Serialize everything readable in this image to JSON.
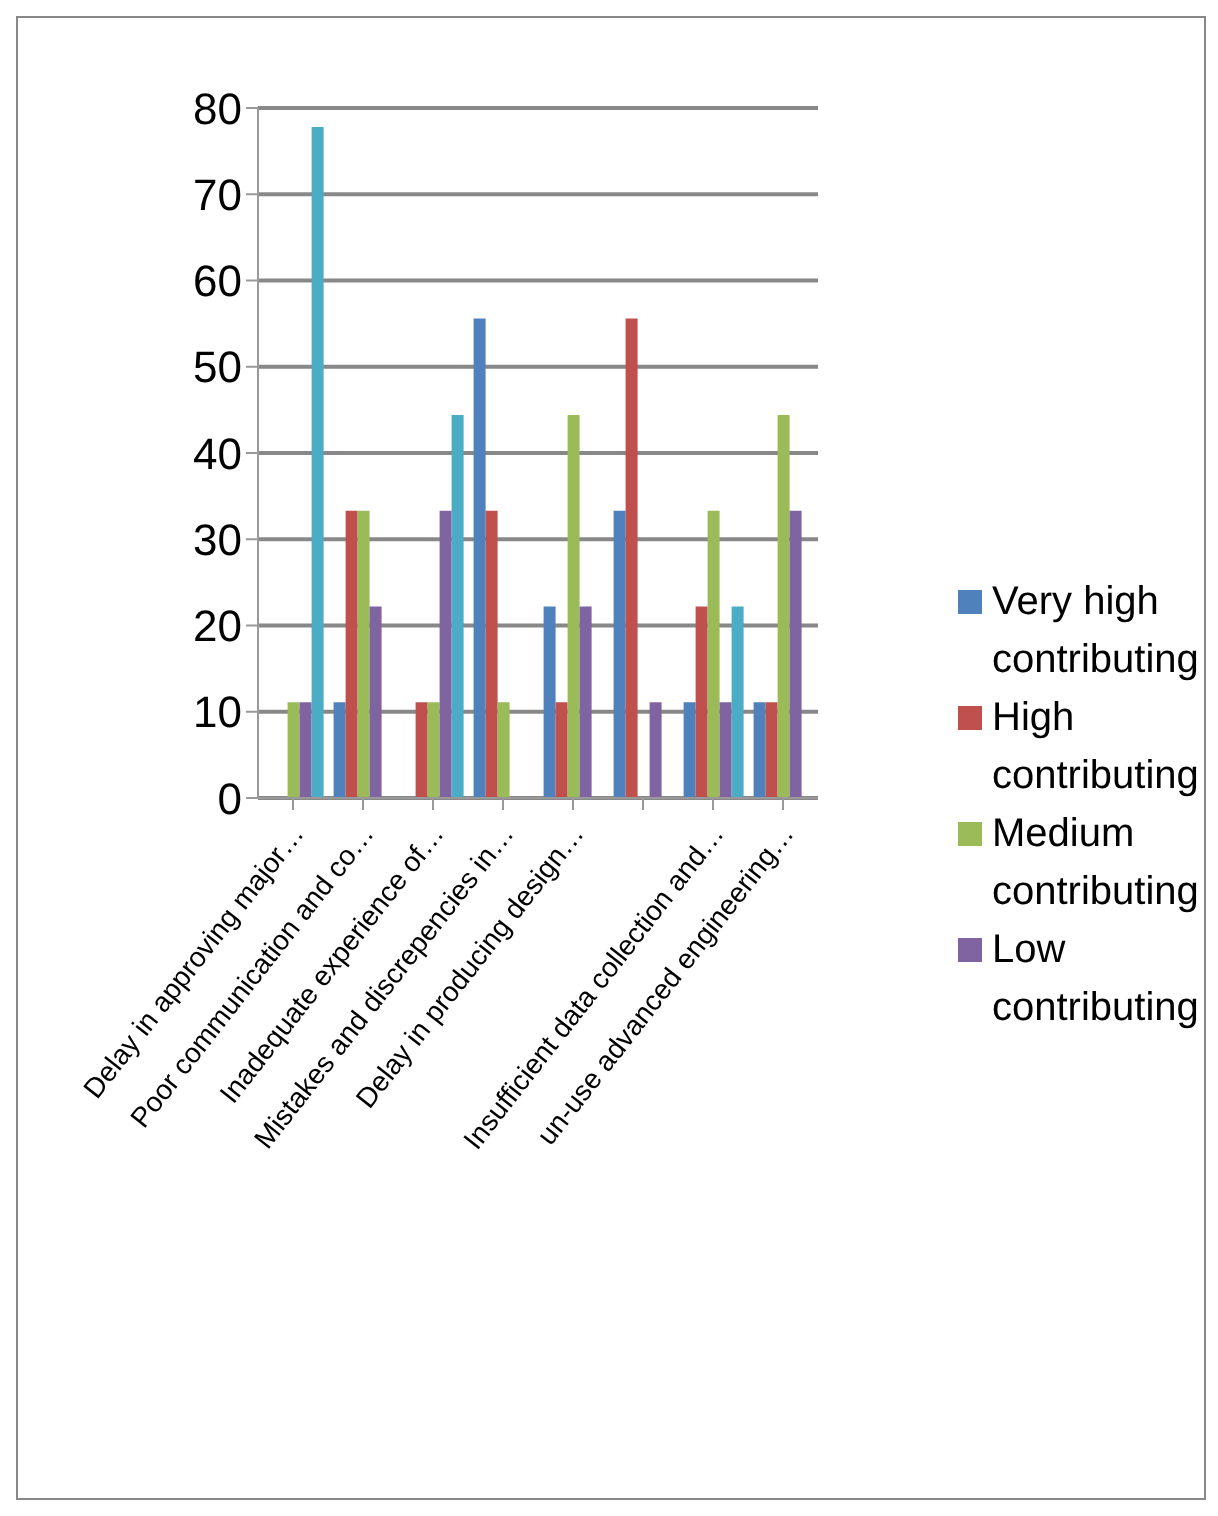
{
  "chart_data": {
    "type": "bar",
    "categories": [
      "Delay in approving major…",
      "Poor communication and co…",
      "Inadequate experience of…",
      "Mistakes and discrepencies in…",
      "Delay in producing design…",
      null,
      "Insufficient data collection and…",
      "un-use  advanced engineering…"
    ],
    "series": [
      {
        "name": "Very high contributing",
        "color": "#4f81bd",
        "values": [
          0,
          11.1,
          0,
          55.6,
          22.2,
          33.3,
          11.1,
          11.1
        ]
      },
      {
        "name": "High contributing",
        "color": "#c0504d",
        "values": [
          0,
          33.3,
          11.1,
          33.3,
          11.1,
          55.6,
          22.2,
          11.1
        ]
      },
      {
        "name": "Medium contributing",
        "color": "#9bbb59",
        "values": [
          11.1,
          33.3,
          11.1,
          11.1,
          44.4,
          0,
          33.3,
          44.4
        ]
      },
      {
        "name": "Low contributing",
        "color": "#8064a2",
        "values": [
          11.1,
          22.2,
          33.3,
          0,
          22.2,
          11.1,
          11.1,
          33.3
        ]
      },
      {
        "color": "#4bacc6",
        "values": [
          77.8,
          0,
          44.4,
          0,
          0,
          0,
          22.2,
          0
        ]
      }
    ],
    "ylim": [
      0,
      80
    ],
    "yticks": [
      0,
      10,
      20,
      30,
      40,
      50,
      60,
      70,
      80
    ],
    "grid": "y",
    "legend": "right"
  }
}
